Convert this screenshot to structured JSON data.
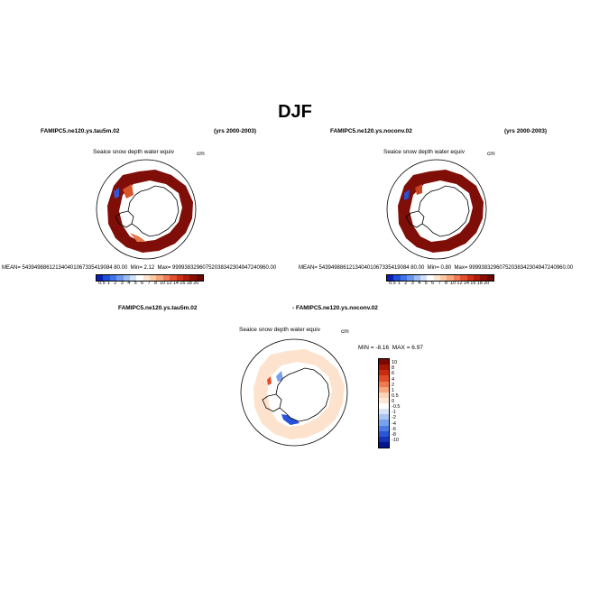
{
  "title": "DJF",
  "panels": [
    {
      "case_name": "FAMIPC5.ne120.ys.tau5m.02",
      "years": "(yrs 2000-2003)",
      "variable": "Seaice snow depth water equiv",
      "units": "cm",
      "mean_label": "MEAN=",
      "mean_value": "543949886121340401067335419084 80.00",
      "min_label": "Min=",
      "min_value": "2.12",
      "max_label": "Max=",
      "max_value": "99993832960752038342304947240960.00"
    },
    {
      "case_name": "FAMIPC5.ne120.ys.noconv.02",
      "years": "(yrs 2000-2003)",
      "variable": "Seaice snow depth water equiv",
      "units": "cm",
      "mean_label": "MEAN=",
      "mean_value": "543949886121340401067335419084 80.00",
      "min_label": "Min=",
      "min_value": "0.80",
      "max_label": "Max=",
      "max_value": "99993832960752038342304947240960.00"
    }
  ],
  "diff_panel": {
    "title_a": "FAMIPC5.ne120.ys.tau5m.02",
    "title_b": "- FAMIPC5.ne120.ys.noconv.02",
    "variable": "Seaice snow depth water equiv",
    "units": "cm",
    "min_label": "MIN =",
    "min_value": "-8.16",
    "max_label": "MAX =",
    "max_value": "6.97"
  },
  "colorbar": {
    "levels": [
      "0.5",
      "1",
      "2",
      "3",
      "4",
      "5",
      "6",
      "7",
      "8",
      "10",
      "12",
      "14",
      "16",
      "18",
      "20"
    ],
    "colors": [
      "#0a1fb0",
      "#1f4fd8",
      "#3f73e8",
      "#6b97ee",
      "#9dbdf3",
      "#cfe0f8",
      "#ffffff",
      "#fde6d0",
      "#fcc9a5",
      "#f7a57b",
      "#ef7a55",
      "#e0502f",
      "#cc2f15",
      "#b01a08",
      "#8e0d02",
      "#6e0600"
    ]
  },
  "diff_colorbar": {
    "levels": [
      "10",
      "8",
      "6",
      "4",
      "2",
      "1",
      "0.5",
      "0",
      "-0.5",
      "-1",
      "-2",
      "-4",
      "-6",
      "-8",
      "-10"
    ],
    "colors": [
      "#7a0800",
      "#a81503",
      "#c92a10",
      "#e14c28",
      "#ef7a52",
      "#f7a57b",
      "#fcd3b5",
      "#fde8d5",
      "#ffffff",
      "#d7e4f7",
      "#a9c4f1",
      "#7aa2ec",
      "#4c79e3",
      "#2c55d3",
      "#1433b5",
      "#05168f"
    ]
  },
  "map_colors": {
    "ice_field": "#7f0e08",
    "ice_high": "#c53a1a",
    "diff_field": "#fde3cd",
    "low_blue": "#2a52d9"
  }
}
